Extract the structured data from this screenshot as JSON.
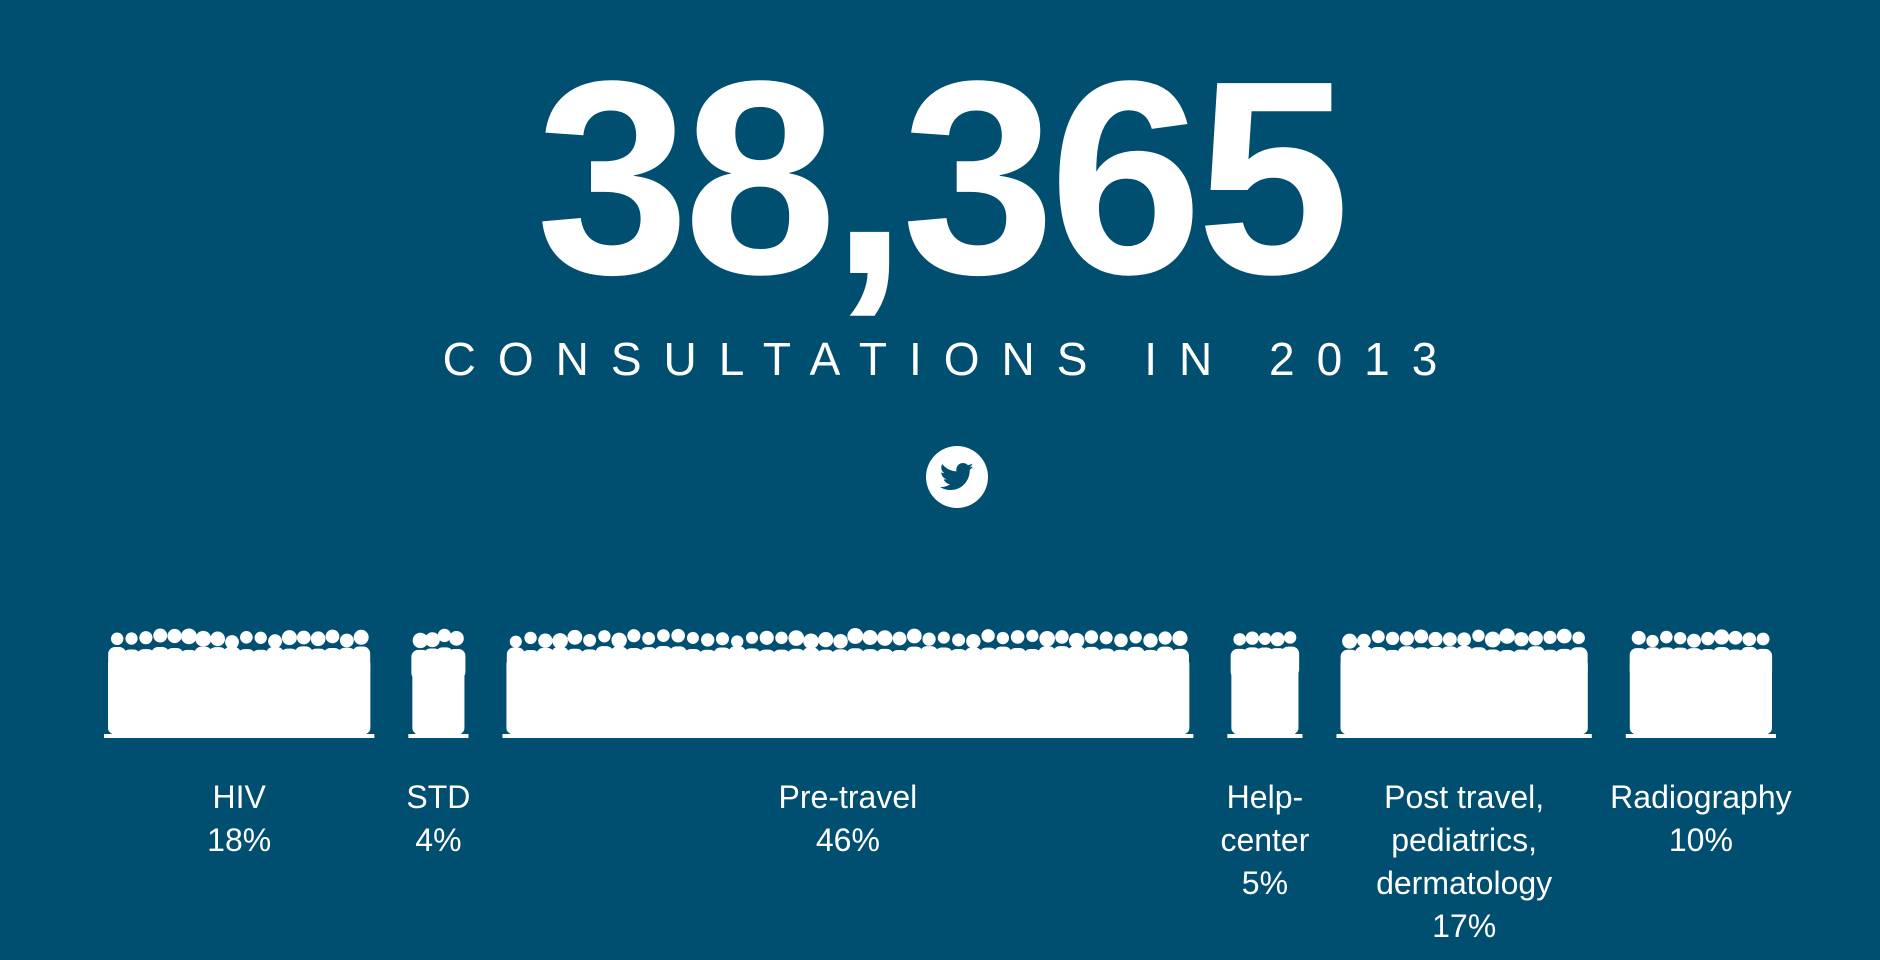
{
  "headline": {
    "total": "38,365",
    "subtitle": "CONSULTATIONS IN 2013"
  },
  "share": {
    "icon": "twitter-icon"
  },
  "colors": {
    "background": "#004f71",
    "foreground": "#ffffff"
  },
  "chart_data": {
    "type": "bar",
    "categories": [
      "HIV",
      "STD",
      "Pre-travel",
      "Help-center",
      "Post travel, pediatrics, dermatology",
      "Radiography"
    ],
    "values": [
      18,
      4,
      46,
      5,
      17,
      10
    ],
    "value_labels": [
      "18%",
      "4%",
      "46%",
      "5%",
      "17%",
      "10%"
    ],
    "label_lines": [
      [
        "HIV"
      ],
      [
        "STD"
      ],
      [
        "Pre-travel"
      ],
      [
        "Help-",
        "center"
      ],
      [
        "Post travel,",
        "pediatrics,",
        "dermatology"
      ],
      [
        "Radiography"
      ]
    ],
    "unit": "%",
    "total": 38365
  }
}
